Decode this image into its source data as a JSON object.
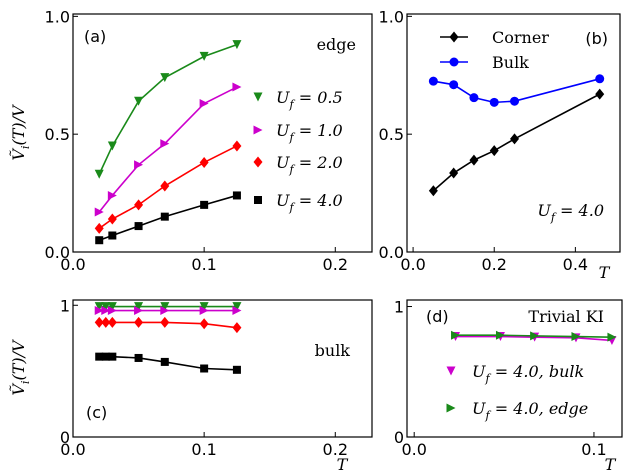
{
  "chart_data": [
    {
      "type": "line",
      "panel_label": "(a)",
      "note": "edge",
      "ylabel": "Ṽ_i(T)/V",
      "xlim": [
        0,
        0.228
      ],
      "ylim": [
        0,
        1.01
      ],
      "xticks": [
        {
          "value": 0,
          "label": "0.0"
        },
        {
          "value": 0.1,
          "label": "0.1"
        },
        {
          "value": 0.2,
          "label": "0.2"
        }
      ],
      "yticks": [
        {
          "value": 0,
          "label": "0.0"
        },
        {
          "value": 0.5,
          "label": "0.5"
        },
        {
          "value": 1,
          "label": "1.0"
        }
      ],
      "x": [
        0.02,
        0.03,
        0.05,
        0.07,
        0.1,
        0.125
      ],
      "series": [
        {
          "name": "U_f = 0.5",
          "color": "#1a8a1a",
          "marker": "v",
          "values": [
            0.33,
            0.45,
            0.64,
            0.74,
            0.83,
            0.88
          ]
        },
        {
          "name": "U_f = 1.0",
          "color": "#cc00cc",
          "marker": ">",
          "values": [
            0.17,
            0.24,
            0.37,
            0.46,
            0.63,
            0.7
          ]
        },
        {
          "name": "U_f = 2.0",
          "color": "#ff0000",
          "marker": "D",
          "values": [
            0.1,
            0.14,
            0.2,
            0.28,
            0.38,
            0.45
          ]
        },
        {
          "name": "U_f = 4.0",
          "color": "#000000",
          "marker": "s",
          "values": [
            0.05,
            0.07,
            0.11,
            0.15,
            0.2,
            0.24
          ]
        }
      ]
    },
    {
      "type": "line",
      "panel_label": "(b)",
      "note": "U_f = 4.0",
      "xlabel": "T",
      "xlim": [
        -0.015,
        0.51
      ],
      "ylim": [
        0,
        1.01
      ],
      "xticks": [
        {
          "value": 0,
          "label": "0.0"
        },
        {
          "value": 0.2,
          "label": "0.2"
        },
        {
          "value": 0.4,
          "label": "0.4"
        }
      ],
      "yticks": [
        {
          "value": 0,
          "label": "0.0"
        },
        {
          "value": 0.5,
          "label": "0.5"
        },
        {
          "value": 1,
          "label": "1.0"
        }
      ],
      "x": [
        0.05,
        0.1,
        0.15,
        0.2,
        0.25,
        0.46
      ],
      "series": [
        {
          "name": "Corner",
          "color": "#000000",
          "marker": "D",
          "values": [
            0.26,
            0.335,
            0.39,
            0.43,
            0.48,
            0.67
          ]
        },
        {
          "name": "Bulk",
          "color": "#0000ff",
          "marker": "o",
          "values": [
            0.725,
            0.71,
            0.655,
            0.635,
            0.64,
            0.735
          ]
        }
      ]
    },
    {
      "type": "line",
      "panel_label": "(c)",
      "note": "bulk",
      "ylabel": "Ṽ_i(T)/V",
      "xlabel": "T",
      "xlim": [
        0,
        0.228
      ],
      "ylim": [
        0,
        1.04
      ],
      "xticks": [
        {
          "value": 0,
          "label": "0.0"
        },
        {
          "value": 0.1,
          "label": "0.1"
        },
        {
          "value": 0.2,
          "label": "0.2"
        }
      ],
      "yticks": [
        0,
        1
      ],
      "x": [
        0.02,
        0.025,
        0.03,
        0.05,
        0.07,
        0.1,
        0.125
      ],
      "series": [
        {
          "color": "#1a8a1a",
          "marker": "v",
          "values": [
            0.99,
            0.99,
            0.99,
            0.99,
            0.99,
            0.99,
            0.99
          ]
        },
        {
          "color": "#cc00cc",
          "marker": ">",
          "values": [
            0.96,
            0.96,
            0.96,
            0.96,
            0.96,
            0.96,
            0.96
          ]
        },
        {
          "color": "#ff0000",
          "marker": "D",
          "values": [
            0.87,
            0.87,
            0.87,
            0.87,
            0.87,
            0.86,
            0.83
          ]
        },
        {
          "color": "#000000",
          "marker": "s",
          "values": [
            0.61,
            0.61,
            0.61,
            0.6,
            0.57,
            0.52,
            0.51
          ]
        }
      ]
    },
    {
      "type": "line",
      "panel_label": "(d)",
      "note": "Trivial KI",
      "xlabel": "T",
      "xlim": [
        -0.004,
        0.1156
      ],
      "ylim": [
        0,
        1.05
      ],
      "xticks": [
        {
          "value": 0,
          "label": "0.0"
        },
        {
          "value": 0.1,
          "label": "0.1"
        }
      ],
      "yticks": [
        0,
        1
      ],
      "x": [
        0.023,
        0.048,
        0.067,
        0.09,
        0.11
      ],
      "series": [
        {
          "name": "U_f = 4.0, bulk",
          "color": "#cc00cc",
          "marker": "v",
          "values": [
            0.77,
            0.77,
            0.765,
            0.76,
            0.74
          ]
        },
        {
          "name": "U_f = 4.0, edge",
          "color": "#1a8a1a",
          "marker": ">",
          "values": [
            0.78,
            0.78,
            0.775,
            0.77,
            0.765
          ]
        }
      ]
    }
  ]
}
